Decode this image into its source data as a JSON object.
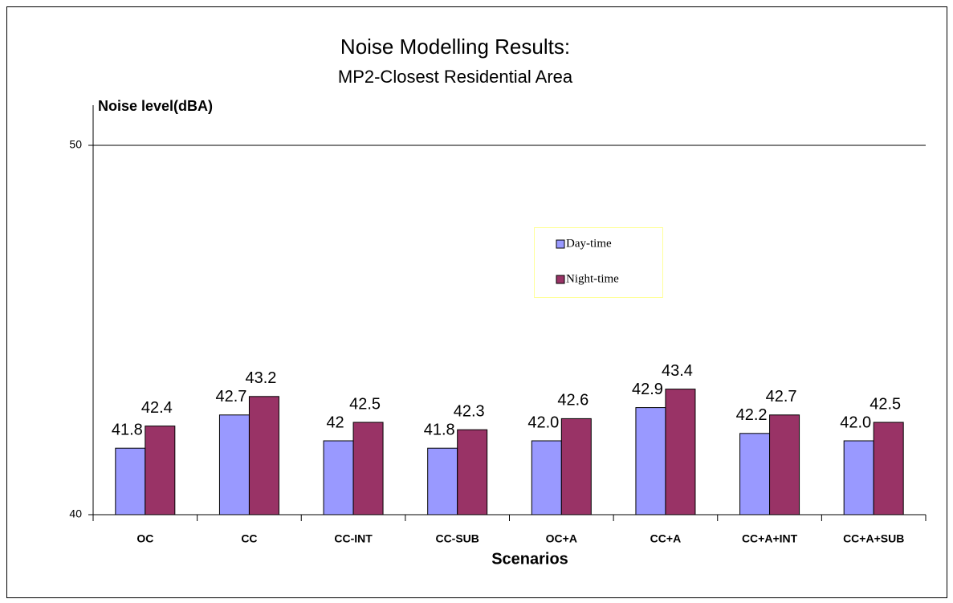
{
  "chart_data": {
    "type": "bar",
    "title": "Noise Modelling Results:",
    "subtitle": "MP2-Closest Residential Area",
    "y_label": "Noise level(dBA)",
    "x_label": "Scenarios",
    "categories": [
      "OC",
      "CC",
      "CC-INT",
      "CC-SUB",
      "OC+A",
      "CC+A",
      "CC+A+INT",
      "CC+A+SUB"
    ],
    "series": [
      {
        "name": "Day-time",
        "color": "#9999ff",
        "values": [
          41.8,
          42.7,
          42,
          41.8,
          42.0,
          42.9,
          42.2,
          42.0
        ],
        "value_labels": [
          "41.8",
          "42.7",
          "42",
          "41.8",
          "42.0",
          "42.9",
          "42.2",
          "42.0"
        ]
      },
      {
        "name": "Night-time",
        "color": "#993366",
        "values": [
          42.4,
          43.2,
          42.5,
          42.3,
          42.6,
          43.4,
          42.7,
          42.5
        ],
        "value_labels": [
          "42.4",
          "43.2",
          "42.5",
          "42.3",
          "42.6",
          "43.4",
          "42.7",
          "42.5"
        ]
      }
    ],
    "ylim": [
      40,
      50
    ],
    "yticks": [
      40,
      50
    ],
    "grid": true,
    "legend_position": "center"
  }
}
